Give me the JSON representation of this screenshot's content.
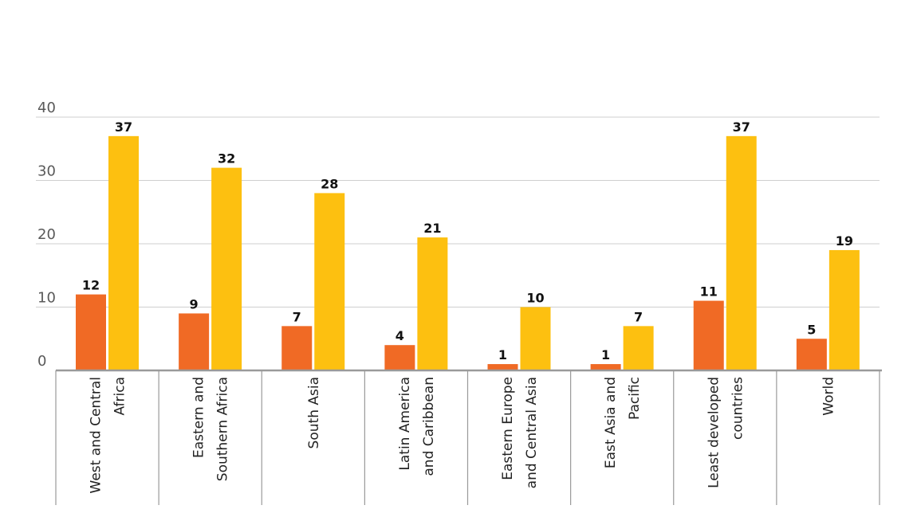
{
  "chart_data": {
    "type": "bar",
    "title": "",
    "xlabel": "",
    "ylabel": "",
    "ylim": [
      0,
      40
    ],
    "yticks": [
      0,
      10,
      20,
      30,
      40
    ],
    "grid": true,
    "categories": [
      [
        "West and Central",
        "Africa"
      ],
      [
        "Eastern and",
        "Southern Africa"
      ],
      [
        "South Asia"
      ],
      [
        "Latin America",
        "and Caribbean"
      ],
      [
        "Eastern Europe",
        "and Central Asia"
      ],
      [
        "East Asia and",
        "Pacific"
      ],
      [
        "Least developed",
        "countries"
      ],
      [
        "World"
      ]
    ],
    "series": [
      {
        "values": [
          12,
          9,
          7,
          4,
          1,
          1,
          11,
          5
        ],
        "color": "#f06a25"
      },
      {
        "values": [
          37,
          32,
          28,
          21,
          10,
          7,
          37,
          19
        ],
        "color": "#fdc010"
      }
    ]
  }
}
